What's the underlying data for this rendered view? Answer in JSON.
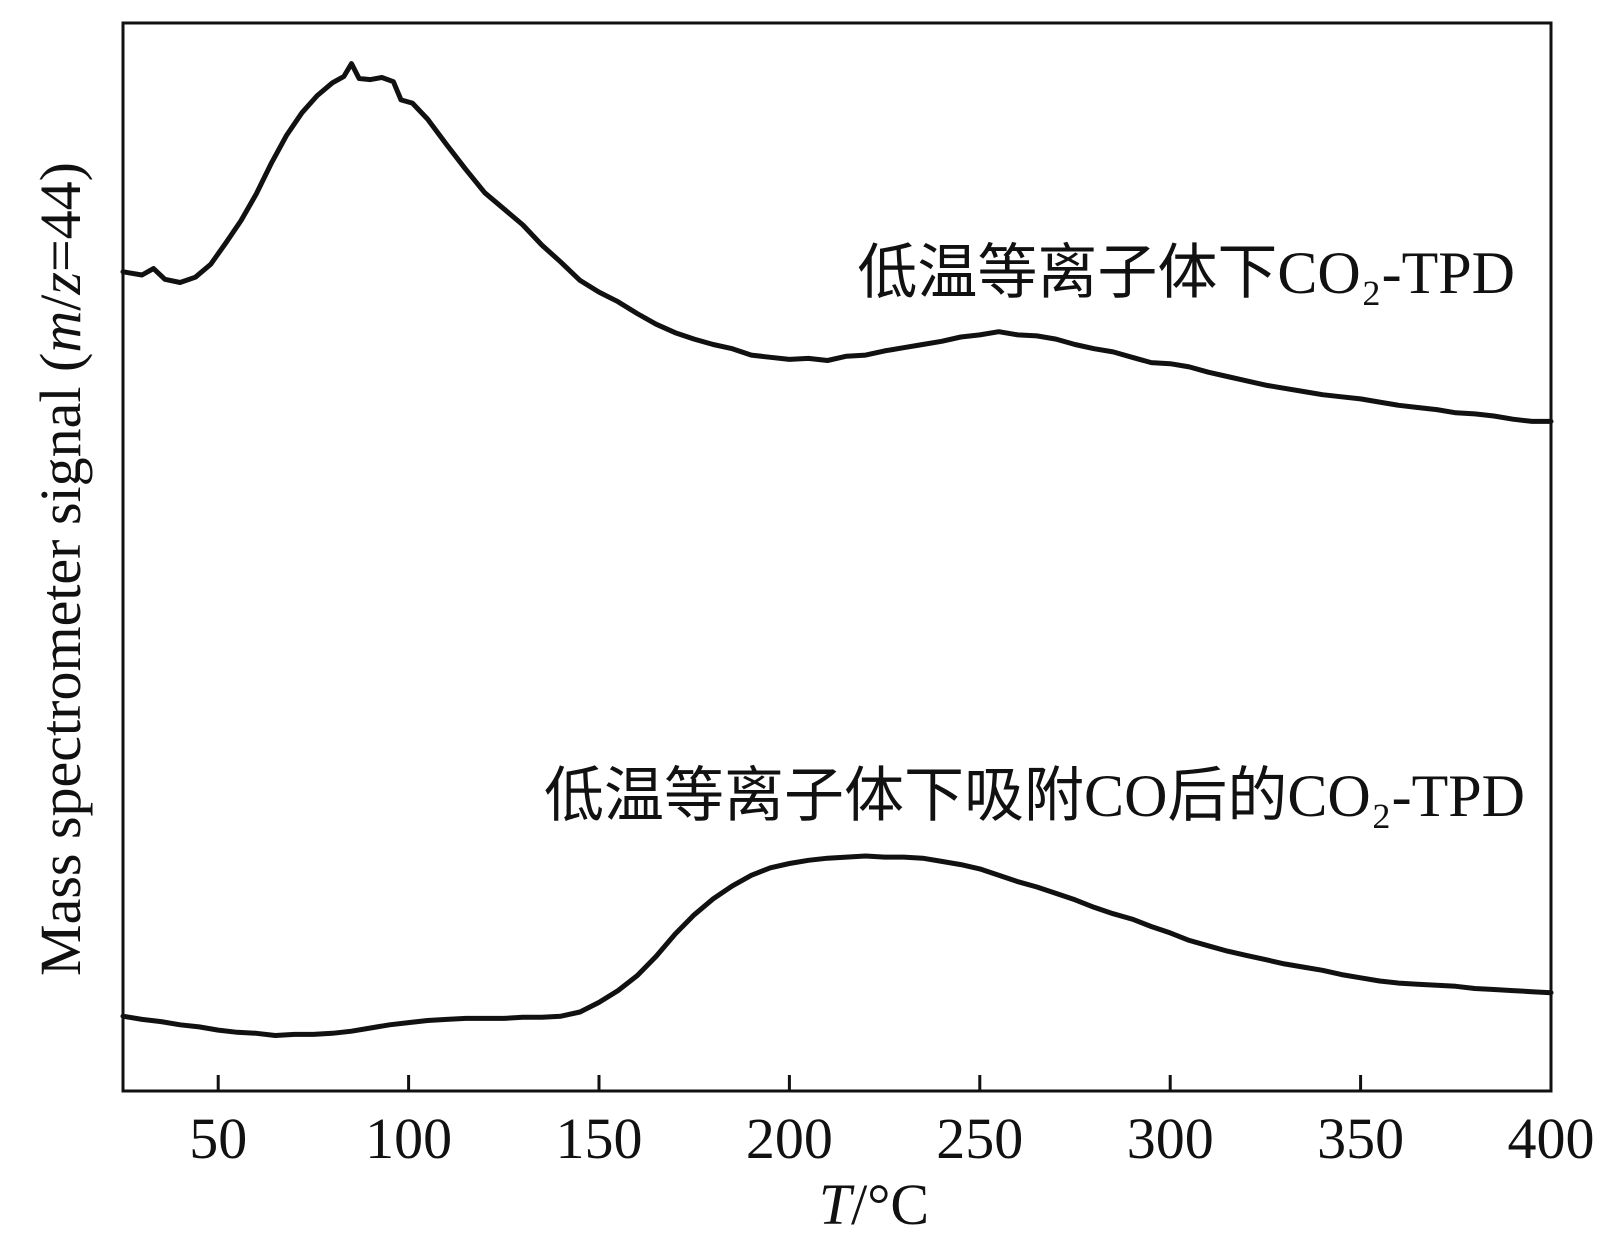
{
  "chart_data": {
    "type": "line",
    "xlabel": "T/°C",
    "ylabel": "Mass spectrometer signal (m/z=44)",
    "xlim": [
      25,
      400
    ],
    "ylim": [
      0,
      100
    ],
    "xticks": [
      50,
      100,
      150,
      200,
      250,
      300,
      350,
      400
    ],
    "yticks": [],
    "grid": false,
    "legend": "none",
    "series": [
      {
        "name": "低温等离子体下CO₂-TPD",
        "color": "#111111",
        "x": [
          25,
          30,
          33,
          36,
          40,
          44,
          48,
          52,
          56,
          60,
          64,
          68,
          72,
          76,
          80,
          83,
          85,
          87,
          90,
          93,
          96,
          98,
          101,
          105,
          110,
          115,
          120,
          125,
          130,
          135,
          140,
          145,
          150,
          155,
          160,
          165,
          170,
          175,
          180,
          185,
          190,
          195,
          200,
          205,
          210,
          215,
          220,
          225,
          230,
          235,
          240,
          245,
          250,
          255,
          260,
          265,
          270,
          275,
          280,
          285,
          290,
          295,
          300,
          305,
          310,
          315,
          320,
          325,
          330,
          335,
          340,
          345,
          350,
          355,
          360,
          365,
          370,
          375,
          380,
          385,
          390,
          395,
          400
        ],
        "y": [
          76.7,
          76.4,
          77.0,
          76.0,
          75.7,
          76.2,
          77.4,
          79.4,
          81.5,
          84.0,
          86.9,
          89.5,
          91.6,
          93.2,
          94.4,
          95.0,
          96.2,
          94.8,
          94.7,
          94.9,
          94.5,
          92.8,
          92.5,
          91.0,
          88.6,
          86.3,
          84.1,
          82.6,
          81.1,
          79.2,
          77.6,
          75.9,
          74.8,
          73.9,
          72.8,
          71.8,
          71.0,
          70.4,
          69.9,
          69.5,
          68.9,
          68.7,
          68.5,
          68.6,
          68.4,
          68.8,
          68.9,
          69.3,
          69.6,
          69.9,
          70.2,
          70.6,
          70.8,
          71.1,
          70.8,
          70.7,
          70.4,
          69.9,
          69.5,
          69.2,
          68.7,
          68.2,
          68.1,
          67.8,
          67.3,
          66.9,
          66.5,
          66.1,
          65.8,
          65.5,
          65.2,
          65.0,
          64.8,
          64.5,
          64.2,
          64.0,
          63.8,
          63.5,
          63.4,
          63.2,
          62.9,
          62.7,
          62.7
        ]
      },
      {
        "name": "低温等离子体下吸附CO后的CO₂-TPD",
        "color": "#111111",
        "x": [
          25,
          30,
          35,
          40,
          45,
          50,
          55,
          60,
          65,
          70,
          75,
          80,
          85,
          90,
          95,
          100,
          105,
          110,
          115,
          120,
          125,
          130,
          135,
          140,
          145,
          150,
          155,
          160,
          165,
          170,
          175,
          180,
          185,
          190,
          195,
          200,
          205,
          210,
          215,
          220,
          225,
          230,
          235,
          240,
          245,
          250,
          255,
          260,
          265,
          270,
          275,
          280,
          285,
          290,
          295,
          300,
          305,
          310,
          315,
          320,
          325,
          330,
          335,
          340,
          345,
          350,
          355,
          360,
          365,
          370,
          375,
          380,
          385,
          390,
          395,
          400
        ],
        "y": [
          7.0,
          6.7,
          6.5,
          6.2,
          6.0,
          5.7,
          5.5,
          5.4,
          5.2,
          5.3,
          5.3,
          5.4,
          5.6,
          5.9,
          6.2,
          6.4,
          6.6,
          6.7,
          6.8,
          6.8,
          6.8,
          6.9,
          6.9,
          7.0,
          7.4,
          8.3,
          9.4,
          10.8,
          12.6,
          14.7,
          16.5,
          18.0,
          19.2,
          20.2,
          20.9,
          21.3,
          21.6,
          21.8,
          21.9,
          22.0,
          21.9,
          21.9,
          21.8,
          21.5,
          21.2,
          20.8,
          20.2,
          19.6,
          19.1,
          18.5,
          17.9,
          17.2,
          16.6,
          16.1,
          15.4,
          14.8,
          14.1,
          13.6,
          13.1,
          12.7,
          12.3,
          11.9,
          11.6,
          11.3,
          10.9,
          10.6,
          10.3,
          10.1,
          10.0,
          9.9,
          9.8,
          9.6,
          9.5,
          9.4,
          9.3,
          9.2
        ]
      }
    ]
  }
}
